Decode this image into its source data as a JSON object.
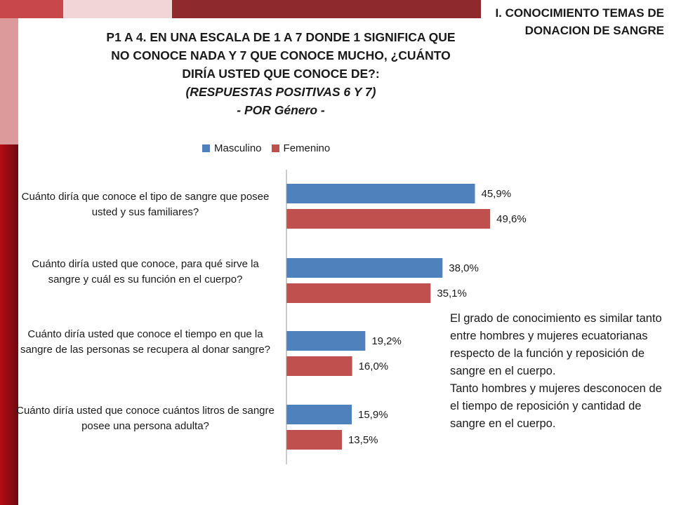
{
  "header": {
    "section_label": "I. CONOCIMIENTO TEMAS DE DONACION DE SANGRE"
  },
  "title": {
    "line1": "P1 A 4. EN UNA ESCALA DE 1 A 7 DONDE 1 SIGNIFICA QUE",
    "line2": "NO CONOCE NADA Y 7 QUE CONOCE MUCHO, ¿CUÁNTO",
    "line3": "DIRÍA USTED QUE CONOCE DE?:",
    "line4": "(RESPUESTAS POSITIVAS 6 Y 7)",
    "line5": "- POR Género -"
  },
  "colors": {
    "masculino": "#4f81bd",
    "femenino": "#c0504d",
    "axis": "#9a9a9a"
  },
  "chart_data": {
    "type": "bar",
    "orientation": "horizontal",
    "categories": [
      "Cuánto diría que conoce el tipo de sangre que posee usted y sus familiares?",
      "Cuánto diría usted que conoce, para qué sirve la sangre y cuál es su función en el cuerpo?",
      "Cuánto diría usted que conoce el tiempo en que la sangre de las personas se recupera al donar sangre?",
      "Cuánto diría usted que conoce cuántos litros de sangre posee una persona adulta?"
    ],
    "series": [
      {
        "name": "Masculino",
        "values": [
          45.9,
          38.0,
          19.2,
          15.9
        ],
        "labels": [
          "45,9%",
          "38,0%",
          "19,2%",
          "15,9%"
        ]
      },
      {
        "name": "Femenino",
        "values": [
          49.6,
          35.1,
          16.0,
          13.5
        ],
        "labels": [
          "49,6%",
          "35,1%",
          "16,0%",
          "13,5%"
        ]
      }
    ],
    "xlim": [
      0,
      50
    ],
    "legend_position": "top",
    "grid": false
  },
  "note": {
    "paragraph1": "El grado de conocimiento es similar tanto entre hombres y mujeres ecuatorianas respecto de la función y reposición de sangre en el cuerpo.",
    "paragraph2": "Tanto hombres y mujeres desconocen de el tiempo de reposición y cantidad de sangre en el cuerpo."
  }
}
